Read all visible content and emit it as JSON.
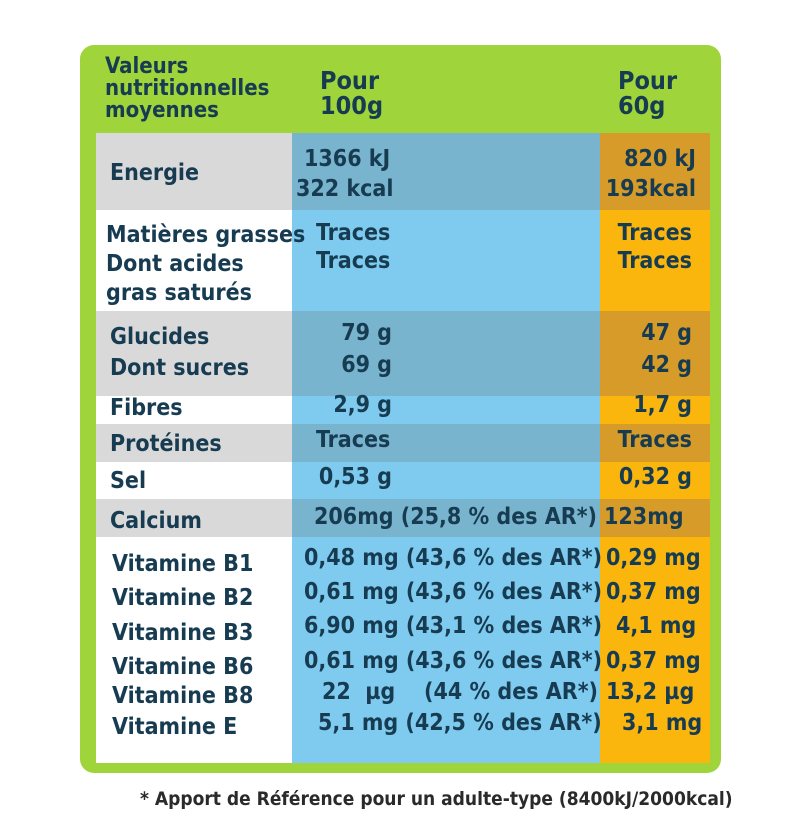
{
  "header": {
    "label_lines": [
      "Valeurs",
      "nutritionnelles",
      "moyennes"
    ],
    "col1_lines": [
      "Pour",
      "100g"
    ],
    "col2_lines": [
      "Pour",
      "60g"
    ]
  },
  "rows": {
    "energie": {
      "label": "Energie",
      "c1a": "1366 kJ",
      "c1b": "322 kcal",
      "c2a": "820 kJ",
      "c2b": "193kcal"
    },
    "matieres": {
      "label_lines": [
        "Matières grasses",
        "Dont acides",
        "gras saturés"
      ],
      "c1a": "Traces",
      "c1b": "Traces",
      "c2a": "Traces",
      "c2b": "Traces"
    },
    "glucides": {
      "label1": "Glucides",
      "label2": "Dont sucres",
      "c1a": "79 g",
      "c1b": "69 g",
      "c2a": "47 g",
      "c2b": "42 g"
    },
    "fibres": {
      "label": "Fibres",
      "c1": "2,9 g",
      "c2": "1,7 g"
    },
    "proteines": {
      "label": "Protéines",
      "c1": "Traces",
      "c2": "Traces"
    },
    "sel": {
      "label": "Sel",
      "c1": "0,53 g",
      "c2": "0,32 g"
    },
    "calcium": {
      "label": "Calcium",
      "c1": "206mg (25,8 % des AR*)",
      "c2": "123mg"
    }
  },
  "vitamins": [
    {
      "label": "Vitamine B1",
      "c1": "0,48 mg (43,6 % des AR*)",
      "c2": "0,29 mg"
    },
    {
      "label": "Vitamine B2",
      "c1": "0,61 mg (43,6 % des AR*)",
      "c2": "0,37 mg"
    },
    {
      "label": "Vitamine B3",
      "c1": "6,90 mg (43,1 % des AR*)",
      "c2": "4,1 mg"
    },
    {
      "label": "Vitamine B6",
      "c1": "0,61 mg (43,6 % des AR*)",
      "c2": "0,37 mg"
    },
    {
      "label": "Vitamine B8",
      "c1": "22  µg    (44 % des AR*)",
      "c2": "13,2 µg"
    },
    {
      "label": "Vitamine E",
      "c1": "5,1 mg (42,5 % des AR*)",
      "c2": "3,1 mg"
    }
  ],
  "footnote": "* Apport de Référence pour un adulte-type (8400kJ/2000kcal)",
  "colors": {
    "frame": "#9fd43a",
    "blue": "#7fcbef",
    "orange": "#fbb60e",
    "band_grey": "#d9d9d9",
    "text": "#173c52"
  }
}
